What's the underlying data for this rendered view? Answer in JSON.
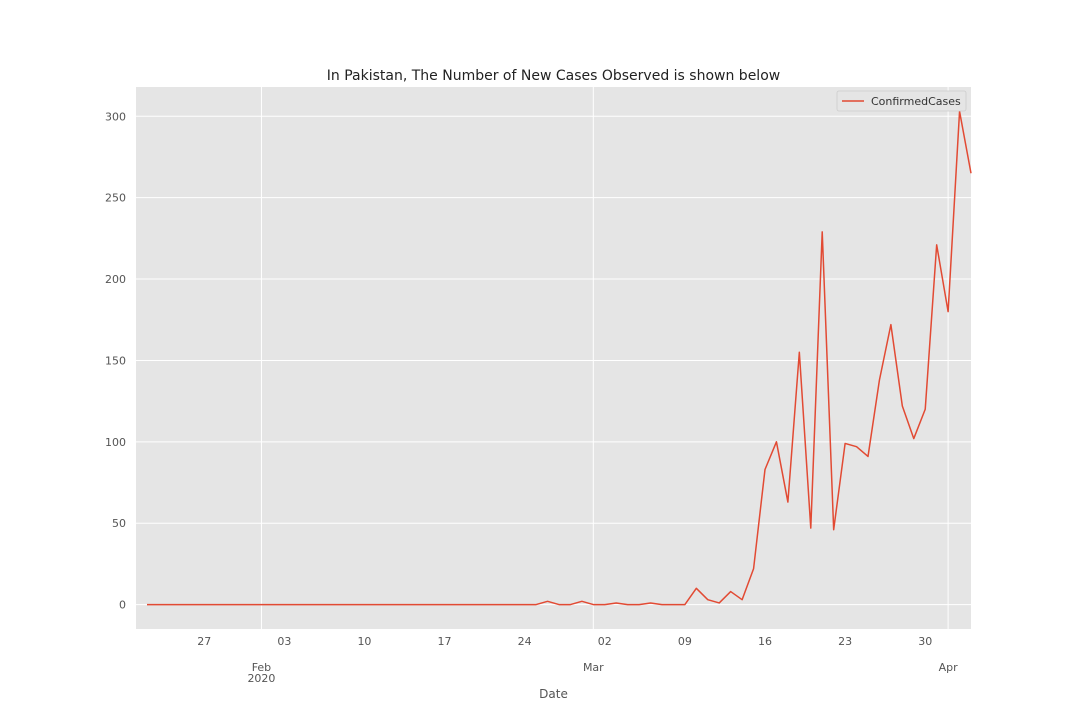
{
  "chart_data": {
    "type": "line",
    "title": "In Pakistan, The Number of New Cases Observed is shown below",
    "xlabel": "Date",
    "ylabel": "",
    "x_start": "2020-01-22",
    "x_end": "2020-04-03",
    "ylim": [
      -15,
      318
    ],
    "grid": true,
    "legend_position": "top-right",
    "colors": {
      "background": "#e5e5e5",
      "grid": "#ffffff",
      "line": "#e24a33",
      "tick_text": "#555555"
    },
    "y_ticks": [
      {
        "value": 0,
        "label": "0"
      },
      {
        "value": 50,
        "label": "50"
      },
      {
        "value": 100,
        "label": "100"
      },
      {
        "value": 150,
        "label": "150"
      },
      {
        "value": 200,
        "label": "200"
      },
      {
        "value": 250,
        "label": "250"
      },
      {
        "value": 300,
        "label": "300"
      }
    ],
    "x_minor_ticks": [
      {
        "date": "2020-01-27",
        "label": "27"
      },
      {
        "date": "2020-02-03",
        "label": "03"
      },
      {
        "date": "2020-02-10",
        "label": "10"
      },
      {
        "date": "2020-02-17",
        "label": "17"
      },
      {
        "date": "2020-02-24",
        "label": "24"
      },
      {
        "date": "2020-03-02",
        "label": "02"
      },
      {
        "date": "2020-03-09",
        "label": "09"
      },
      {
        "date": "2020-03-16",
        "label": "16"
      },
      {
        "date": "2020-03-23",
        "label": "23"
      },
      {
        "date": "2020-03-30",
        "label": "30"
      }
    ],
    "x_major_ticks": [
      {
        "date": "2020-02-01",
        "label": "Feb",
        "sublabel": "2020"
      },
      {
        "date": "2020-03-01",
        "label": "Mar",
        "sublabel": ""
      },
      {
        "date": "2020-04-01",
        "label": "Apr",
        "sublabel": ""
      }
    ],
    "series": [
      {
        "name": "ConfirmedCases",
        "values": [
          0,
          0,
          0,
          0,
          0,
          0,
          0,
          0,
          0,
          0,
          0,
          0,
          0,
          0,
          0,
          0,
          0,
          0,
          0,
          0,
          0,
          0,
          0,
          0,
          0,
          0,
          0,
          0,
          0,
          0,
          0,
          0,
          0,
          0,
          0,
          2,
          0,
          0,
          2,
          0,
          0,
          1,
          0,
          0,
          1,
          0,
          0,
          0,
          10,
          3,
          1,
          8,
          3,
          22,
          83,
          100,
          63,
          155,
          47,
          229,
          46,
          99,
          97,
          91,
          138,
          172,
          122,
          102,
          120,
          221,
          180,
          303,
          265
        ]
      }
    ]
  }
}
